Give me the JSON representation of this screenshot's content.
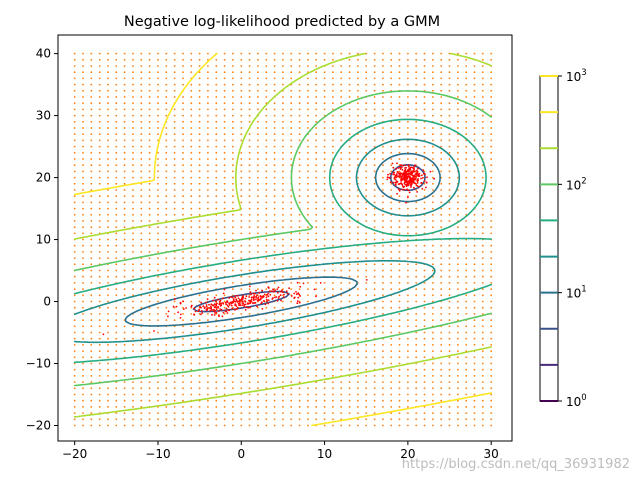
{
  "chart_data": {
    "type": "contour",
    "title": "Negative log-likelihood predicted by a GMM",
    "xlabel": "",
    "ylabel": "",
    "xlim": [
      -22,
      32.5
    ],
    "ylim": [
      -22.5,
      43
    ],
    "xticks": [
      -20,
      -10,
      0,
      10,
      20,
      30
    ],
    "yticks": [
      -20,
      -10,
      0,
      10,
      20,
      30,
      40
    ],
    "grid": false,
    "grid_points": {
      "x_range": [
        -20,
        30
      ],
      "y_range": [
        -20,
        40
      ],
      "step": 1,
      "color": "#ff7f0e"
    },
    "components": [
      {
        "name": "",
        "mean": [
          0,
          0
        ],
        "cov": [
          [
            15,
            3.2
          ],
          [
            3.2,
            1.2
          ]
        ]
      },
      {
        "name": "",
        "mean": [
          20,
          20
        ],
        "cov": [
          [
            1,
            0
          ],
          [
            0,
            1
          ]
        ]
      }
    ],
    "samples": {
      "color": "#ff0000",
      "count_per_component": 300
    },
    "contour_levels_log10": [
      0,
      0.333,
      0.667,
      1,
      1.333,
      1.667,
      2,
      2.333,
      2.667,
      3
    ],
    "colorbar": {
      "scale": "log",
      "range": [
        1,
        1000
      ],
      "tick_labels": [
        {
          "base": "10",
          "exp": "0",
          "value": 1
        },
        {
          "base": "10",
          "exp": "1",
          "value": 10
        },
        {
          "base": "10",
          "exp": "2",
          "value": 100
        },
        {
          "base": "10",
          "exp": "3",
          "value": 1000
        }
      ],
      "level_colors": [
        "#440154",
        "#472c7a",
        "#3b518b",
        "#2c718e",
        "#21908d",
        "#27ad81",
        "#5cc863",
        "#aadc32",
        "#fde725"
      ]
    }
  },
  "watermark": "https://blog.csdn.net/qq_36931982"
}
